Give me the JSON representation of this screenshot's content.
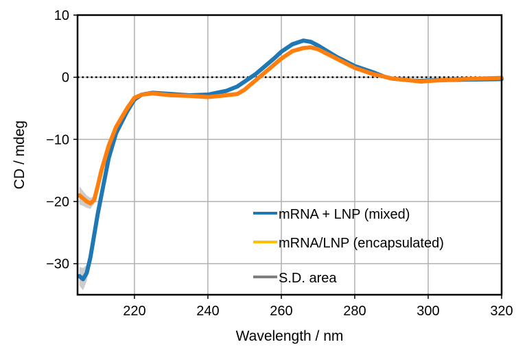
{
  "chart_data": {
    "type": "line",
    "title": "",
    "xlabel": "Wavelength / nm",
    "ylabel": "CD / mdeg",
    "xlim": [
      204.5,
      320
    ],
    "ylim": [
      -35,
      10
    ],
    "xticks": [
      220,
      240,
      260,
      280,
      300,
      320
    ],
    "yticks": [
      10,
      0,
      -10,
      -20,
      -30
    ],
    "xtick_labels": [
      "220",
      "240",
      "260",
      "280",
      "300",
      "320"
    ],
    "ytick_labels": [
      "10",
      "0",
      "−10",
      "−20",
      "−30"
    ],
    "grid": true,
    "zero_line": {
      "y": 0,
      "style": "dotted",
      "color": "#000000"
    },
    "legend_placement": "lower-right",
    "x": [
      205,
      206,
      207,
      208,
      209,
      210,
      211,
      213,
      215,
      218,
      220,
      222,
      225,
      230,
      235,
      240,
      245,
      248,
      250,
      253,
      255,
      258,
      260,
      263,
      266,
      268,
      270,
      275,
      280,
      285,
      288,
      290,
      295,
      298,
      300,
      310,
      320
    ],
    "series": [
      {
        "name": "mRNA + LNP (mixed)",
        "color": "#1f77b4",
        "values": [
          -32,
          -32.5,
          -31.5,
          -29,
          -25.5,
          -22,
          -19,
          -13,
          -9,
          -5.5,
          -3.6,
          -2.8,
          -2.5,
          -2.7,
          -2.9,
          -2.8,
          -2.2,
          -1.5,
          -0.7,
          0.5,
          1.5,
          3.0,
          4.1,
          5.3,
          5.9,
          5.7,
          5.1,
          3.3,
          1.8,
          0.8,
          0.1,
          -0.2,
          -0.5,
          -0.6,
          -0.5,
          -0.4,
          -0.3
        ],
        "sd": [
          1.5,
          1.8,
          1.3,
          0.8,
          0.5,
          0.3,
          0.2,
          0.1,
          0.1,
          0.1,
          0.1,
          0.1,
          0.1,
          0.1,
          0.1,
          0.1,
          0.1,
          0.1,
          0.1,
          0.1,
          0.1,
          0.1,
          0.1,
          0.1,
          0.1,
          0.1,
          0.1,
          0.1,
          0.1,
          0.1,
          0.1,
          0.1,
          0.1,
          0.1,
          0.1,
          0.1,
          0.1
        ]
      },
      {
        "name": "mRNA/LNP (encapsulated)",
        "color": "#ff7f0e",
        "legend_color": "#ffc000",
        "values": [
          -19,
          -19.5,
          -20,
          -20.3,
          -19.8,
          -17.5,
          -15,
          -11,
          -8,
          -5,
          -3.3,
          -2.8,
          -2.6,
          -2.9,
          -3.0,
          -3.2,
          -2.9,
          -2.7,
          -2.0,
          -0.5,
          0.5,
          2.0,
          3.0,
          4.2,
          4.7,
          4.8,
          4.5,
          3.0,
          1.5,
          0.5,
          0.1,
          -0.2,
          -0.5,
          -0.7,
          -0.6,
          -0.3,
          -0.1
        ],
        "sd": [
          1.5,
          1.2,
          1.0,
          0.9,
          0.6,
          0.4,
          0.2,
          0.1,
          0.1,
          0.1,
          0.1,
          0.1,
          0.1,
          0.1,
          0.1,
          0.1,
          0.1,
          0.1,
          0.1,
          0.1,
          0.1,
          0.1,
          0.1,
          0.1,
          0.1,
          0.1,
          0.1,
          0.1,
          0.1,
          0.1,
          0.1,
          0.1,
          0.1,
          0.1,
          0.1,
          0.1,
          0.1
        ]
      }
    ],
    "legend": [
      {
        "label": "mRNA + LNP (mixed)",
        "color": "#1f77b4"
      },
      {
        "label": "mRNA/LNP (encapsulated)",
        "color": "#ffc000"
      },
      {
        "label": "S.D. area",
        "color": "#808080"
      }
    ],
    "sd_color": "#c8c8c8"
  }
}
